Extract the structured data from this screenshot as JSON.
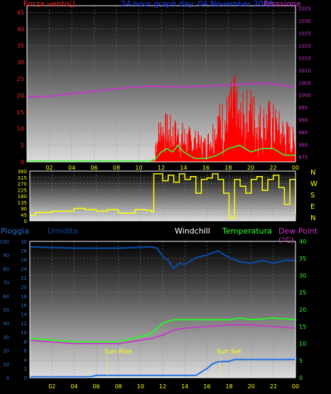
{
  "header": {
    "left": "Forza vento()",
    "center": "24 hour graph day: 04 November 2018",
    "right": "Pressione"
  },
  "mid_header": {
    "pioggia": "Pioggia",
    "umidita": "Umidita",
    "windchill": "Windchill",
    "temperatura": "Temperatura",
    "dewpoint": "Dew Point (°C)"
  },
  "annotations": {
    "sunrise": "Sun Rise",
    "sunset": "Sun Set"
  },
  "colors": {
    "wind": "#ff0000",
    "gust_green": "#33ff33",
    "pressure": "#cc33cc",
    "direction": "#ffff00",
    "humidity": "#0b4aa0",
    "temperature": "#22ff22",
    "dewpoint": "#cc33cc",
    "rain": "#1e6fe8",
    "tick_yellow": "#ffff00",
    "tick_red": "#ff2222",
    "tick_magenta": "#cc33cc",
    "tick_blue": "#2b6cc4",
    "tick_green": "#33ff33",
    "frame": "#ffffff"
  },
  "chart_data": [
    {
      "type": "line",
      "name": "wind-pressure",
      "x_ticks": [
        "02",
        "04",
        "06",
        "08",
        "10",
        "12",
        "14",
        "16",
        "18",
        "20",
        "22",
        "00"
      ],
      "y_left": {
        "ticks": [
          0,
          5,
          10,
          15,
          20,
          25,
          30,
          35,
          40,
          45
        ],
        "range": [
          0,
          47
        ]
      },
      "y_right": {
        "ticks": [
          975,
          980,
          985,
          990,
          995,
          1000,
          1005,
          1010,
          1015,
          1020,
          1025,
          1030,
          1035
        ],
        "range": [
          973,
          1036
        ]
      },
      "pressure_series": [
        [
          0,
          999.2
        ],
        [
          2,
          999.5
        ],
        [
          4,
          1000.5
        ],
        [
          6,
          1001.5
        ],
        [
          8,
          1002.5
        ],
        [
          10,
          1003.3
        ],
        [
          11,
          1003.5
        ],
        [
          12,
          1003.5
        ],
        [
          14,
          1003.2
        ],
        [
          16,
          1003.6
        ],
        [
          18,
          1004
        ],
        [
          20,
          1004.6
        ],
        [
          21,
          1004.7
        ],
        [
          22,
          1004.5
        ],
        [
          23,
          1003.8
        ],
        [
          24,
          1003
        ]
      ],
      "wind_start_hour": 11.5,
      "wind_envelope": [
        [
          11.5,
          10
        ],
        [
          12,
          16
        ],
        [
          13,
          14
        ],
        [
          14,
          12
        ],
        [
          15,
          10
        ],
        [
          16,
          8
        ],
        [
          17,
          18
        ],
        [
          18,
          22
        ],
        [
          18.5,
          28
        ],
        [
          19,
          20
        ],
        [
          20,
          24
        ],
        [
          21,
          18
        ],
        [
          21.5,
          20
        ],
        [
          22,
          18
        ],
        [
          23,
          14
        ],
        [
          24,
          10
        ]
      ],
      "green_series": [
        [
          0,
          0.3
        ],
        [
          11,
          0.3
        ],
        [
          11.5,
          1
        ],
        [
          12,
          3
        ],
        [
          12.5,
          4
        ],
        [
          13,
          3
        ],
        [
          13.5,
          5
        ],
        [
          14,
          3
        ],
        [
          15,
          1
        ],
        [
          16,
          1
        ],
        [
          17,
          2
        ],
        [
          18,
          4
        ],
        [
          19,
          5
        ],
        [
          20,
          3
        ],
        [
          21,
          4
        ],
        [
          22,
          4
        ],
        [
          23,
          2
        ],
        [
          24,
          2
        ]
      ]
    },
    {
      "type": "line",
      "name": "wind-direction",
      "y_ticks": [
        0,
        45,
        90,
        135,
        180,
        225,
        270,
        315,
        360
      ],
      "y_range": [
        0,
        360
      ],
      "compass": [
        "N",
        "W",
        "S",
        "E",
        "N"
      ],
      "direction_series": [
        [
          0,
          40
        ],
        [
          0.5,
          60
        ],
        [
          1,
          60
        ],
        [
          2,
          70
        ],
        [
          3,
          70
        ],
        [
          4,
          90
        ],
        [
          5,
          80
        ],
        [
          6,
          70
        ],
        [
          7,
          80
        ],
        [
          8,
          55
        ],
        [
          9,
          55
        ],
        [
          9.5,
          80
        ],
        [
          10,
          80
        ],
        [
          10.5,
          75
        ],
        [
          11,
          65
        ],
        [
          11.2,
          340
        ],
        [
          12,
          290
        ],
        [
          12.5,
          330
        ],
        [
          13,
          280
        ],
        [
          13.5,
          340
        ],
        [
          14,
          300
        ],
        [
          14.5,
          320
        ],
        [
          15,
          200
        ],
        [
          15.5,
          300
        ],
        [
          16,
          310
        ],
        [
          16.5,
          340
        ],
        [
          17,
          300
        ],
        [
          17.5,
          200
        ],
        [
          18,
          20
        ],
        [
          18.5,
          300
        ],
        [
          19,
          250
        ],
        [
          19.5,
          200
        ],
        [
          20,
          300
        ],
        [
          20.5,
          320
        ],
        [
          21,
          220
        ],
        [
          21.5,
          300
        ],
        [
          22,
          330
        ],
        [
          22.5,
          240
        ],
        [
          23,
          120
        ],
        [
          23.5,
          300
        ],
        [
          24,
          50
        ]
      ]
    },
    {
      "type": "line",
      "name": "temp-rain-humidity",
      "x_ticks": [
        "02",
        "04",
        "06",
        "08",
        "10",
        "12",
        "14",
        "16",
        "18",
        "20",
        "22",
        "00"
      ],
      "y_left_rain": {
        "ticks": [
          0,
          2,
          4,
          6,
          8,
          10,
          12,
          14,
          16,
          18,
          20,
          22,
          24,
          26,
          28,
          30
        ],
        "range": [
          0,
          30
        ]
      },
      "y_left_hum": {
        "ticks": [
          0,
          10,
          20,
          30,
          40,
          50,
          60,
          70,
          80,
          90,
          100
        ],
        "range": [
          0,
          100
        ]
      },
      "y_right_temp": {
        "ticks": [
          0,
          5,
          10,
          15,
          20,
          25,
          30,
          35,
          40
        ],
        "range": [
          0,
          40
        ]
      },
      "humidity_series": [
        [
          0,
          96
        ],
        [
          4,
          95
        ],
        [
          8,
          95
        ],
        [
          11,
          96
        ],
        [
          11.5,
          95
        ],
        [
          12,
          89
        ],
        [
          12.5,
          86
        ],
        [
          13,
          80
        ],
        [
          13.5,
          84
        ],
        [
          14,
          83
        ],
        [
          15,
          88
        ],
        [
          16,
          90
        ],
        [
          17,
          93
        ],
        [
          18,
          88
        ],
        [
          19,
          85
        ],
        [
          20,
          84
        ],
        [
          21,
          86
        ],
        [
          22,
          84
        ],
        [
          23,
          86
        ],
        [
          24,
          86
        ]
      ],
      "temperature_series": [
        [
          0,
          11.5
        ],
        [
          2,
          11
        ],
        [
          4,
          10.5
        ],
        [
          6,
          10.5
        ],
        [
          8,
          10.5
        ],
        [
          10,
          12
        ],
        [
          11,
          13
        ],
        [
          12,
          16
        ],
        [
          13,
          17
        ],
        [
          14,
          17
        ],
        [
          16,
          17
        ],
        [
          18,
          17
        ],
        [
          19,
          17.5
        ],
        [
          20,
          17
        ],
        [
          22,
          17.5
        ],
        [
          24,
          17
        ]
      ],
      "dewpoint_series": [
        [
          0,
          11
        ],
        [
          2,
          10.5
        ],
        [
          4,
          10
        ],
        [
          6,
          10
        ],
        [
          8,
          10
        ],
        [
          10,
          11
        ],
        [
          11,
          11.5
        ],
        [
          12,
          12.5
        ],
        [
          13,
          14
        ],
        [
          14,
          14.5
        ],
        [
          16,
          15
        ],
        [
          18,
          15.5
        ],
        [
          20,
          15.5
        ],
        [
          22,
          15
        ],
        [
          24,
          14.5
        ]
      ],
      "rain_series": [
        [
          0,
          0.2
        ],
        [
          5.5,
          0.2
        ],
        [
          6,
          0.5
        ],
        [
          15,
          0.5
        ],
        [
          16,
          2
        ],
        [
          16.5,
          3
        ],
        [
          17,
          3.5
        ],
        [
          18,
          3.6
        ],
        [
          18.5,
          4
        ],
        [
          24,
          4
        ],
        [
          24,
          5
        ]
      ],
      "sunrise_hour": 7,
      "sunset_hour": 17.2
    }
  ]
}
